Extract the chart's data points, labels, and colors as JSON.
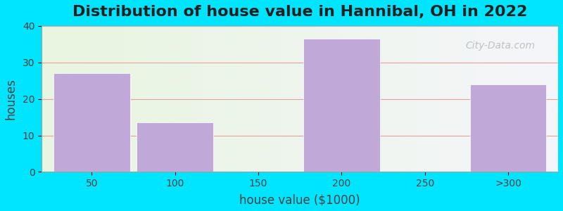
{
  "title": "Distribution of house value in Hannibal, OH in 2022",
  "xlabel": "house value ($1000)",
  "ylabel": "houses",
  "categories": [
    "50",
    "100",
    "150",
    "200",
    "250",
    ">300"
  ],
  "values": [
    27,
    13.5,
    0,
    36.5,
    0,
    24
  ],
  "bar_color": "#c0a8d8",
  "background_outer": "#00e5ff",
  "grid_color": "#e8a0a0",
  "ylim": [
    0,
    40
  ],
  "yticks": [
    0,
    10,
    20,
    30,
    40
  ],
  "watermark": "City-Data.com",
  "title_fontsize": 16,
  "axis_label_fontsize": 12,
  "tick_fontsize": 10,
  "bar_width": 0.92
}
